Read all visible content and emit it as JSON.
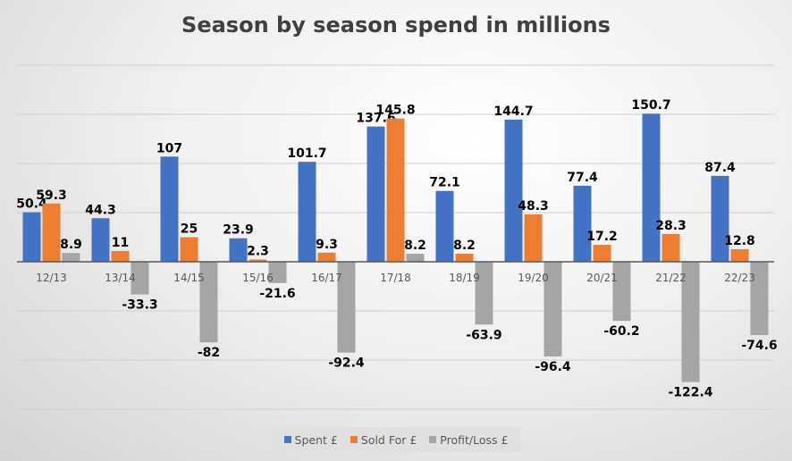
{
  "chart_data": {
    "type": "bar",
    "title": "Season by season spend in millions",
    "categories": [
      "12/13",
      "13/14",
      "14/15",
      "15/16",
      "16/17",
      "17/18",
      "18/19",
      "19/20",
      "20/21",
      "21/22",
      "22/23"
    ],
    "series": [
      {
        "name": "Spent £",
        "color": "#4472c4",
        "values": [
          50.4,
          44.3,
          107,
          23.9,
          101.7,
          137.6,
          72.1,
          144.7,
          77.4,
          150.7,
          87.4
        ]
      },
      {
        "name": "Sold For £",
        "color": "#ed7d31",
        "values": [
          59.3,
          11,
          25,
          2.3,
          9.3,
          145.8,
          8.2,
          48.3,
          17.2,
          28.3,
          12.8
        ]
      },
      {
        "name": "Profit/Loss £",
        "color": "#a5a5a5",
        "values": [
          8.9,
          -33.3,
          -82,
          -21.6,
          -92.4,
          8.2,
          -63.9,
          -96.4,
          -60.2,
          -122.4,
          -74.6
        ]
      }
    ],
    "ylim": [
      -150,
      200
    ],
    "ytick_step": 50,
    "grid": true,
    "legend_position": "bottom",
    "xlabel": "",
    "ylabel": ""
  }
}
